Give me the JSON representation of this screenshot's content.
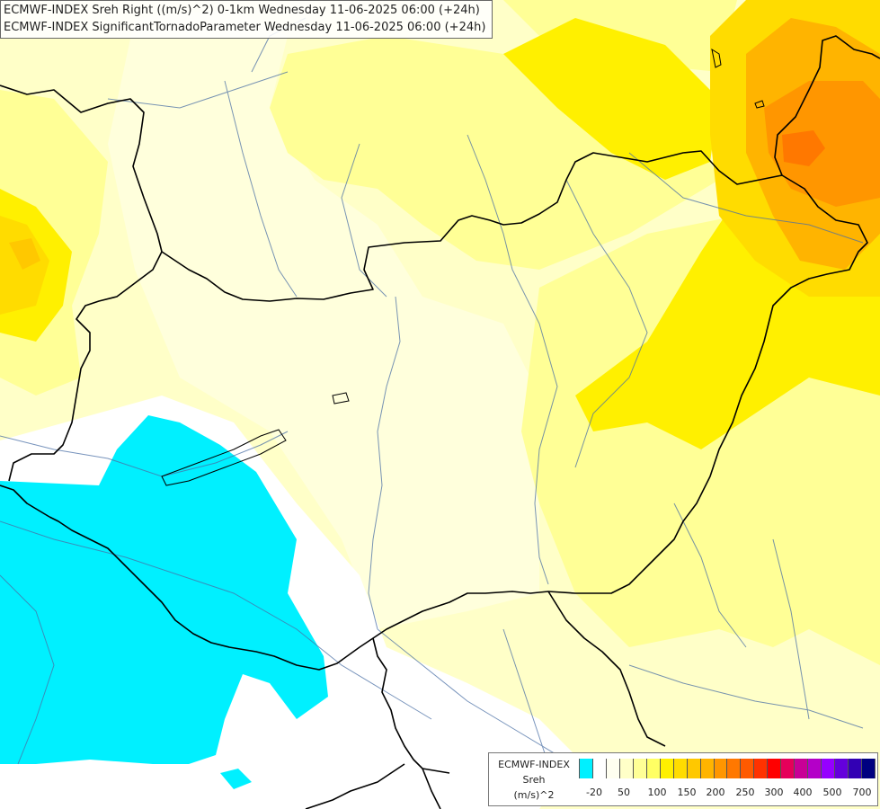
{
  "titles": {
    "line1": "ECMWF-INDEX Sreh Right ((m/s)^2) 0-1km Wednesday 11-06-2025 06:00 (+24h)",
    "line2": "ECMWF-INDEX SignificantTornadoParameter Wednesday 11-06-2025 06:00 (+24h)"
  },
  "legend": {
    "model": "ECMWF-INDEX",
    "param": "Sreh",
    "unit": "(m/s)^2",
    "colors": [
      "#00f0ff",
      "#ffffff",
      "#fffff0",
      "#ffffc8",
      "#ffff96",
      "#ffff64",
      "#fff000",
      "#ffdc00",
      "#ffc800",
      "#ffb400",
      "#ff9600",
      "#ff7800",
      "#ff5a00",
      "#ff3200",
      "#ff0000",
      "#e6005a",
      "#c80096",
      "#b400c8",
      "#9600ff",
      "#6400dc",
      "#3200b4",
      "#000080"
    ],
    "ticks": [
      "-20",
      "50",
      "100",
      "150",
      "200",
      "250",
      "300",
      "400",
      "500",
      "700"
    ]
  },
  "icons": {
    "basemap": "country-borders-and-rivers"
  }
}
